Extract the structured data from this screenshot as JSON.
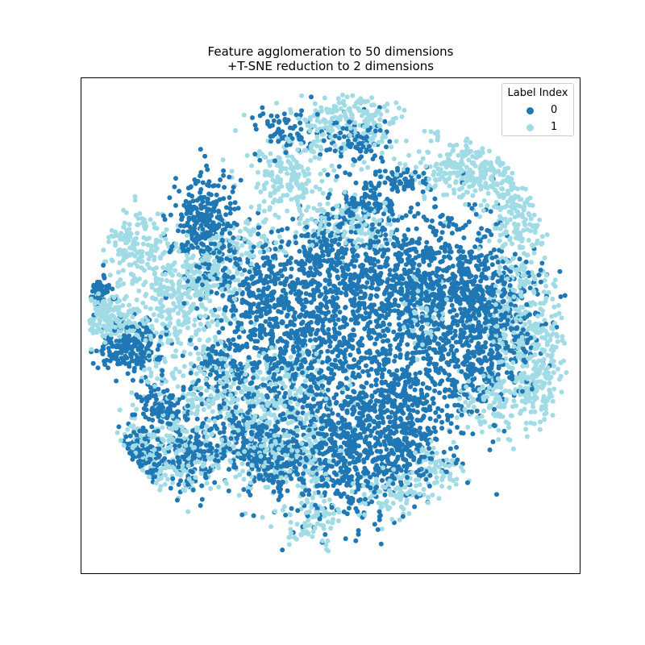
{
  "chart_data": {
    "type": "scatter",
    "title": "Feature agglomeration to 50 dimensions",
    "subtitle": "+T-SNE reduction to 2 dimensions",
    "xlabel": "",
    "ylabel": "",
    "xlim": [
      -60,
      60
    ],
    "ylim": [
      -60,
      60
    ],
    "ticks_visible": false,
    "grid": false,
    "legend": {
      "title": "Label Index",
      "placement": "top-right"
    },
    "series": [
      {
        "name": "0",
        "color": "#1f77b4",
        "clusters": [
          {
            "cx": -6,
            "cy": -4,
            "sx": 11,
            "sy": 13,
            "n": 900
          },
          {
            "cx": 12,
            "cy": 10,
            "sx": 12,
            "sy": 8,
            "n": 520
          },
          {
            "cx": 27,
            "cy": 13,
            "sx": 8,
            "sy": 9,
            "n": 380
          },
          {
            "cx": 38,
            "cy": 5,
            "sx": 7,
            "sy": 7,
            "n": 280
          },
          {
            "cx": 3,
            "cy": -32,
            "sx": 8,
            "sy": 8,
            "n": 460
          },
          {
            "cx": 17,
            "cy": -29,
            "sx": 6,
            "sy": 6,
            "n": 220
          },
          {
            "cx": 25,
            "cy": -10,
            "sx": 9,
            "sy": 9,
            "n": 320
          },
          {
            "cx": 37,
            "cy": -6,
            "sx": 6,
            "sy": 7,
            "n": 220
          },
          {
            "cx": -30,
            "cy": 24,
            "sx": 4,
            "sy": 7,
            "n": 300
          },
          {
            "cx": -40,
            "cy": -20,
            "sx": 3,
            "sy": 3,
            "n": 120
          },
          {
            "cx": -46,
            "cy": -32,
            "sx": 4,
            "sy": 3,
            "n": 160
          },
          {
            "cx": -33,
            "cy": -32,
            "sx": 3,
            "sy": 4,
            "n": 130
          },
          {
            "cx": -14,
            "cy": -32,
            "sx": 4,
            "sy": 4,
            "n": 200
          },
          {
            "cx": -22,
            "cy": -24,
            "sx": 4,
            "sy": 4,
            "n": 120
          },
          {
            "cx": -48,
            "cy": -5,
            "sx": 4,
            "sy": 3,
            "n": 220
          },
          {
            "cx": -56,
            "cy": 8,
            "sx": 2,
            "sy": 2,
            "n": 70
          },
          {
            "cx": -10,
            "cy": 47,
            "sx": 4,
            "sy": 3,
            "n": 70
          },
          {
            "cx": 5,
            "cy": 45,
            "sx": 4,
            "sy": 3,
            "n": 90
          },
          {
            "cx": 9,
            "cy": 30,
            "sx": 3,
            "sy": 3,
            "n": 110
          },
          {
            "cx": 18,
            "cy": 35,
            "sx": 3,
            "sy": 2,
            "n": 60
          },
          {
            "cx": -17,
            "cy": 8,
            "sx": 5,
            "sy": 7,
            "n": 170
          },
          {
            "cx": 13,
            "cy": -18,
            "sx": 7,
            "sy": 5,
            "n": 180
          },
          {
            "cx": -1,
            "cy": 20,
            "sx": 4,
            "sy": 4,
            "n": 100
          },
          {
            "cx": -27,
            "cy": -10,
            "sx": 4,
            "sy": 4,
            "n": 80
          }
        ]
      },
      {
        "name": "1",
        "color": "#a1dbe6",
        "clusters": [
          {
            "cx": -38,
            "cy": 5,
            "sx": 8,
            "sy": 9,
            "n": 420
          },
          {
            "cx": -53,
            "cy": 2,
            "sx": 3,
            "sy": 3,
            "n": 160
          },
          {
            "cx": -47,
            "cy": 20,
            "sx": 4,
            "sy": 4,
            "n": 130
          },
          {
            "cx": -24,
            "cy": -18,
            "sx": 9,
            "sy": 7,
            "n": 280
          },
          {
            "cx": -38,
            "cy": -32,
            "sx": 8,
            "sy": 5,
            "n": 260
          },
          {
            "cx": -9,
            "cy": -30,
            "sx": 6,
            "sy": 6,
            "n": 200
          },
          {
            "cx": 35,
            "cy": 38,
            "sx": 8,
            "sy": 4,
            "n": 320
          },
          {
            "cx": 45,
            "cy": 25,
            "sx": 4,
            "sy": 8,
            "n": 200
          },
          {
            "cx": 47,
            "cy": 0,
            "sx": 5,
            "sy": 7,
            "n": 240
          },
          {
            "cx": 50,
            "cy": -12,
            "sx": 3,
            "sy": 6,
            "n": 130
          },
          {
            "cx": 40,
            "cy": -18,
            "sx": 5,
            "sy": 4,
            "n": 140
          },
          {
            "cx": 0,
            "cy": 50,
            "sx": 5,
            "sy": 4,
            "n": 140
          },
          {
            "cx": 10,
            "cy": 50,
            "sx": 4,
            "sy": 5,
            "n": 110
          },
          {
            "cx": -10,
            "cy": 35,
            "sx": 5,
            "sy": 5,
            "n": 180
          },
          {
            "cx": 6,
            "cy": 24,
            "sx": 6,
            "sy": 3,
            "n": 130
          },
          {
            "cx": -4,
            "cy": -47,
            "sx": 3,
            "sy": 3,
            "n": 80
          },
          {
            "cx": 14,
            "cy": -40,
            "sx": 5,
            "sy": 3,
            "n": 100
          },
          {
            "cx": -10,
            "cy": -13,
            "sx": 5,
            "sy": 5,
            "n": 100
          },
          {
            "cx": 26,
            "cy": -35,
            "sx": 3,
            "sy": 3,
            "n": 70
          },
          {
            "cx": -30,
            "cy": 12,
            "sx": 4,
            "sy": 4,
            "n": 90
          },
          {
            "cx": 22,
            "cy": 3,
            "sx": 4,
            "sy": 4,
            "n": 60
          },
          {
            "cx": -20,
            "cy": 20,
            "sx": 4,
            "sy": 3,
            "n": 70
          }
        ]
      }
    ]
  }
}
